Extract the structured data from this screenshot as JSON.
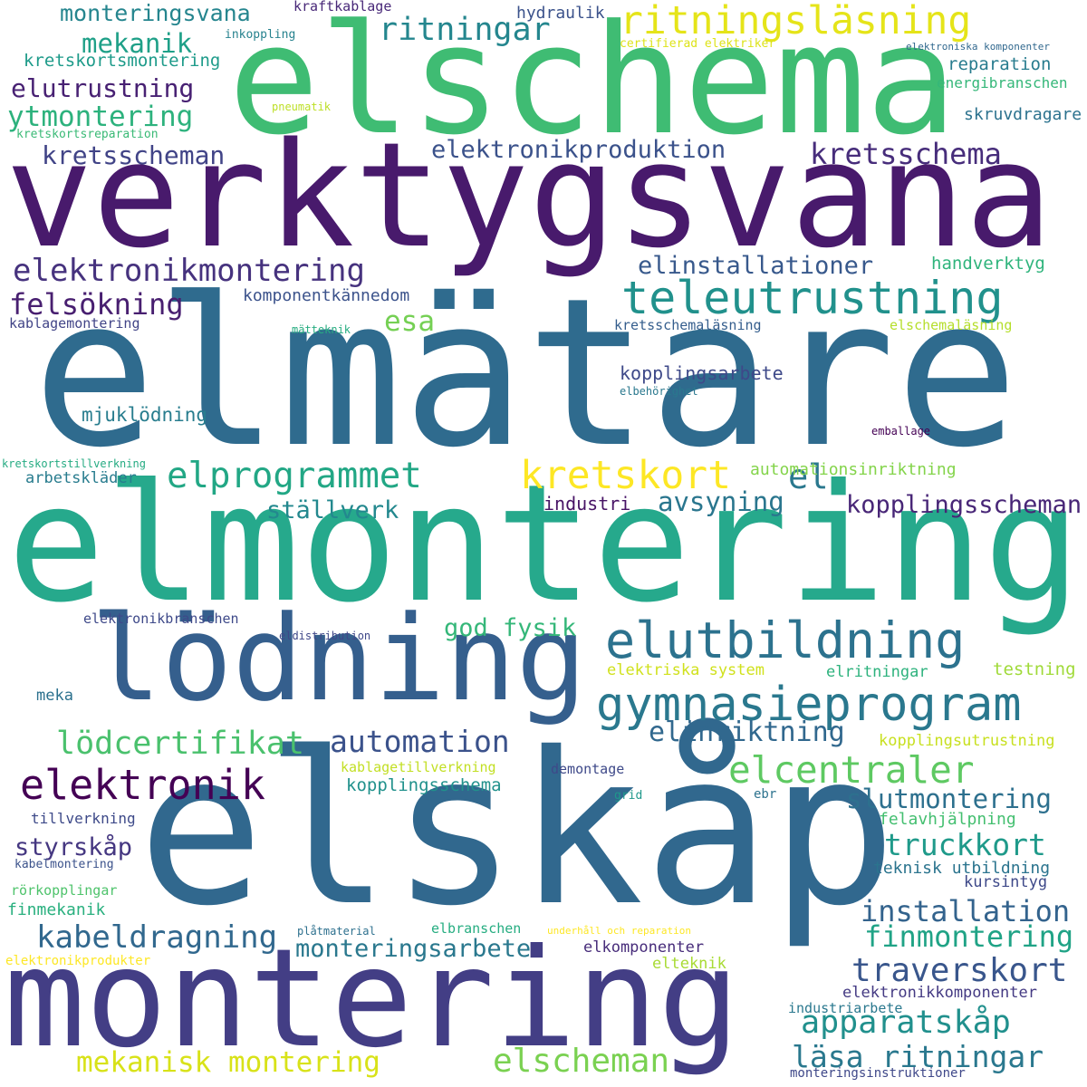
{
  "words": [
    {
      "text": "elmätare",
      "color": "#2f6b8e"
    },
    {
      "text": "elmontering",
      "color": "#26a98c"
    },
    {
      "text": "elskåp",
      "color": "#31688e"
    },
    {
      "text": "verktygsvana",
      "color": "#481a6c"
    },
    {
      "text": "elschema",
      "color": "#3fbc73"
    },
    {
      "text": "montering",
      "color": "#433e85"
    },
    {
      "text": "lödning",
      "color": "#355f8d"
    },
    {
      "text": "gymnasieprogram",
      "color": "#2a788e"
    },
    {
      "text": "elutbildning",
      "color": "#2c728e"
    },
    {
      "text": "teleutrustning",
      "color": "#21918c"
    },
    {
      "text": "ritningsläsning",
      "color": "#e5e419"
    },
    {
      "text": "elektronikmontering",
      "color": "#46327e"
    },
    {
      "text": "elprogrammet",
      "color": "#22a785"
    },
    {
      "text": "kretskort",
      "color": "#fde725"
    },
    {
      "text": "elektronik",
      "color": "#440154"
    },
    {
      "text": "elcentraler",
      "color": "#5ec962"
    },
    {
      "text": "kretsschema",
      "color": "#472d7b"
    },
    {
      "text": "ritningar",
      "color": "#24868e"
    },
    {
      "text": "elektronikproduktion",
      "color": "#3b528b"
    },
    {
      "text": "kretsscheman",
      "color": "#414487"
    },
    {
      "text": "mekanik",
      "color": "#1fa088"
    },
    {
      "text": "elutrustning",
      "color": "#482173"
    },
    {
      "text": "ytmontering",
      "color": "#2db27d"
    },
    {
      "text": "monteringsvana",
      "color": "#25858e"
    },
    {
      "text": "felsökning",
      "color": "#481f70"
    },
    {
      "text": "elinstallationer",
      "color": "#38598c"
    },
    {
      "text": "esa",
      "color": "#75d054"
    },
    {
      "text": "el",
      "color": "#2a788e"
    },
    {
      "text": "avsyning",
      "color": "#2a768e"
    },
    {
      "text": "kopplingsscheman",
      "color": "#482677"
    },
    {
      "text": "ställverk",
      "color": "#23888e"
    },
    {
      "text": "god fysik",
      "color": "#35b779"
    },
    {
      "text": "automation",
      "color": "#3b528b"
    },
    {
      "text": "lödcertifikat",
      "color": "#4ac16d"
    },
    {
      "text": "elinriktning",
      "color": "#31688e"
    },
    {
      "text": "slutmontering",
      "color": "#2d708e"
    },
    {
      "text": "truckkort",
      "color": "#1f9a8a"
    },
    {
      "text": "installation",
      "color": "#33638d"
    },
    {
      "text": "finmontering",
      "color": "#20a386"
    },
    {
      "text": "kabeldragning",
      "color": "#31688e"
    },
    {
      "text": "monteringsarbete",
      "color": "#2a788e"
    },
    {
      "text": "traverskort",
      "color": "#39568c"
    },
    {
      "text": "apparatskåp",
      "color": "#21908d"
    },
    {
      "text": "läsa ritningar",
      "color": "#2a788e"
    },
    {
      "text": "elscheman",
      "color": "#7ad151"
    },
    {
      "text": "mekanisk montering",
      "color": "#d8e219"
    },
    {
      "text": "styrskåp",
      "color": "#453781"
    },
    {
      "text": "kopplingsschema",
      "color": "#21918c"
    },
    {
      "text": "mjuklödning",
      "color": "#287d8e"
    },
    {
      "text": "kopplingsarbete",
      "color": "#3e4989"
    },
    {
      "text": "handverktyg",
      "color": "#2fb47c"
    },
    {
      "text": "komponentkännedom",
      "color": "#3b528b"
    },
    {
      "text": "kraftkablage",
      "color": "#482878"
    },
    {
      "text": "hydraulik",
      "color": "#3b528b"
    },
    {
      "text": "reparation",
      "color": "#287c8e"
    },
    {
      "text": "skruvdragare",
      "color": "#2c728e"
    },
    {
      "text": "kretskortsmontering",
      "color": "#1e9b8a"
    },
    {
      "text": "inkoppling",
      "color": "#26828e"
    },
    {
      "text": "certifierad elektriker",
      "color": "#dde318"
    },
    {
      "text": "elektroniska komponenter",
      "color": "#31688e"
    },
    {
      "text": "energibranschen",
      "color": "#35b779"
    },
    {
      "text": "pneumatik",
      "color": "#bddf26"
    },
    {
      "text": "kretskortsreparation",
      "color": "#3aba76"
    },
    {
      "text": "kablagemontering",
      "color": "#414487"
    },
    {
      "text": "mätteknik",
      "color": "#27ad81"
    },
    {
      "text": "kretsschemaläsning",
      "color": "#355e8d"
    },
    {
      "text": "elschemaläsning",
      "color": "#b5de2b"
    },
    {
      "text": "elbehörighet",
      "color": "#2a788e"
    },
    {
      "text": "emballage",
      "color": "#440154"
    },
    {
      "text": "kretskortstillverkning",
      "color": "#25ab82"
    },
    {
      "text": "arbetskläder",
      "color": "#287c8e"
    },
    {
      "text": "automationsinriktning",
      "color": "#84d44b"
    },
    {
      "text": "industri",
      "color": "#471365"
    },
    {
      "text": "elektronikbranschen",
      "color": "#3e4989"
    },
    {
      "text": "eldistribution",
      "color": "#3f4788"
    },
    {
      "text": "elektriska system",
      "color": "#d0e11c"
    },
    {
      "text": "elritningar",
      "color": "#2db27d"
    },
    {
      "text": "testning",
      "color": "#a0da39"
    },
    {
      "text": "meka",
      "color": "#2c718e"
    },
    {
      "text": "kopplingsutrustning",
      "color": "#c8e020"
    },
    {
      "text": "kablagetillverkning",
      "color": "#c2df23"
    },
    {
      "text": "demontage",
      "color": "#3e4989"
    },
    {
      "text": "grid",
      "color": "#1f988b"
    },
    {
      "text": "ebr",
      "color": "#2c728e"
    },
    {
      "text": "felavhjälpning",
      "color": "#44bf70"
    },
    {
      "text": "tillverkning",
      "color": "#3e4a89"
    },
    {
      "text": "kabelmontering",
      "color": "#3b528b"
    },
    {
      "text": "rörkopplingar",
      "color": "#4ec36b"
    },
    {
      "text": "finmekanik",
      "color": "#2ab07f"
    },
    {
      "text": "teknisk utbildning",
      "color": "#2b748e"
    },
    {
      "text": "kursintyg",
      "color": "#3e4989"
    },
    {
      "text": "plåtmaterial",
      "color": "#2d708e"
    },
    {
      "text": "elbranschen",
      "color": "#26ad81"
    },
    {
      "text": "underhåll och reparation",
      "color": "#fde725"
    },
    {
      "text": "elkomponenter",
      "color": "#472c7a"
    },
    {
      "text": "elektronikprodukter",
      "color": "#fde725"
    },
    {
      "text": "elteknik",
      "color": "#a8db34"
    },
    {
      "text": "elektronikkomponenter",
      "color": "#443a83"
    },
    {
      "text": "industriarbete",
      "color": "#2a788e"
    },
    {
      "text": "monteringsinstruktioner",
      "color": "#3f4889"
    }
  ]
}
